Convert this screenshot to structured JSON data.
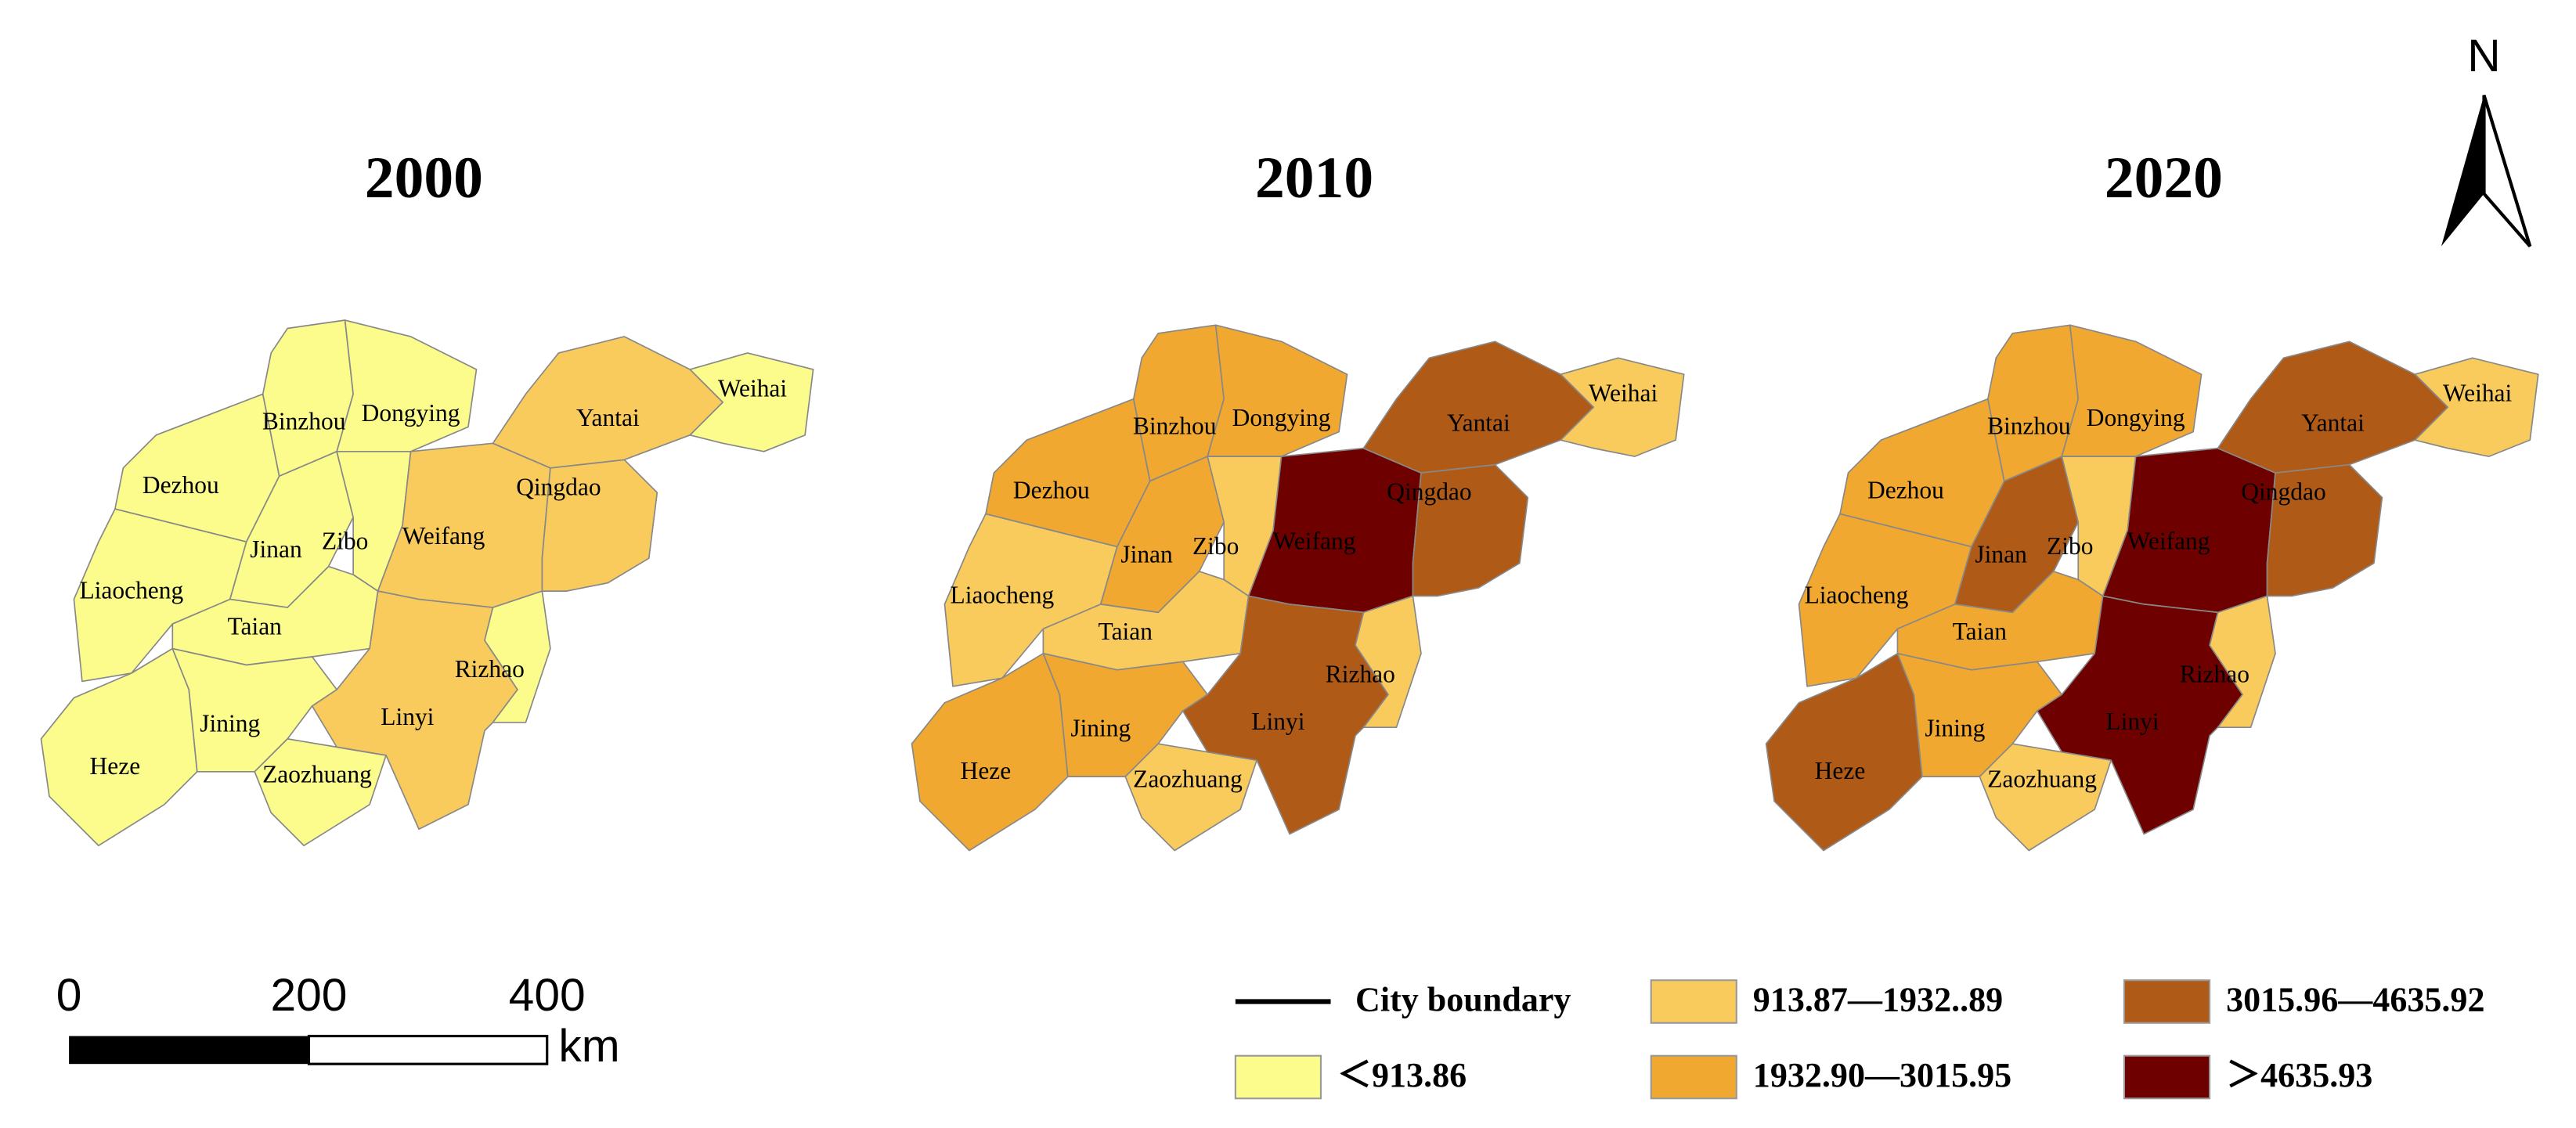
{
  "north": "N",
  "maps": [
    {
      "year": "2000",
      "cities": [
        {
          "name": "Dezhou",
          "color": "#fbfc8c"
        },
        {
          "name": "Liaocheng",
          "color": "#fbfc8c"
        },
        {
          "name": "Binzhou",
          "color": "#fbfc8c"
        },
        {
          "name": "Dongying",
          "color": "#fbfc8c"
        },
        {
          "name": "Jinan",
          "color": "#fbfc8c"
        },
        {
          "name": "Zibo",
          "color": "#fbfc8c"
        },
        {
          "name": "Taian",
          "color": "#fbfc8c"
        },
        {
          "name": "Heze",
          "color": "#fbfc8c"
        },
        {
          "name": "Jining",
          "color": "#fbfc8c"
        },
        {
          "name": "Zaozhuang",
          "color": "#fbfc8c"
        },
        {
          "name": "Weifang",
          "color": "#f8cb5c"
        },
        {
          "name": "Linyi",
          "color": "#f8cb5c"
        },
        {
          "name": "Rizhao",
          "color": "#fbfc8c"
        },
        {
          "name": "Qingdao",
          "color": "#f8cb5c"
        },
        {
          "name": "Yantai",
          "color": "#f8cb5c"
        },
        {
          "name": "Weihai",
          "color": "#fbfc8c"
        }
      ]
    },
    {
      "year": "2010",
      "cities": [
        {
          "name": "Dezhou",
          "color": "#f0a830"
        },
        {
          "name": "Liaocheng",
          "color": "#f8cb5c"
        },
        {
          "name": "Binzhou",
          "color": "#f0a830"
        },
        {
          "name": "Dongying",
          "color": "#f0a830"
        },
        {
          "name": "Jinan",
          "color": "#f0a830"
        },
        {
          "name": "Zibo",
          "color": "#f8cb5c"
        },
        {
          "name": "Taian",
          "color": "#f8cb5c"
        },
        {
          "name": "Heze",
          "color": "#f0a830"
        },
        {
          "name": "Jining",
          "color": "#f0a830"
        },
        {
          "name": "Zaozhuang",
          "color": "#f8cb5c"
        },
        {
          "name": "Weifang",
          "color": "#6e0000"
        },
        {
          "name": "Linyi",
          "color": "#b05a17"
        },
        {
          "name": "Rizhao",
          "color": "#f8cb5c"
        },
        {
          "name": "Qingdao",
          "color": "#b05a17"
        },
        {
          "name": "Yantai",
          "color": "#b05a17"
        },
        {
          "name": "Weihai",
          "color": "#f8cb5c"
        }
      ]
    },
    {
      "year": "2020",
      "cities": [
        {
          "name": "Dezhou",
          "color": "#f0a830"
        },
        {
          "name": "Liaocheng",
          "color": "#f0a830"
        },
        {
          "name": "Binzhou",
          "color": "#f0a830"
        },
        {
          "name": "Dongying",
          "color": "#f0a830"
        },
        {
          "name": "Jinan",
          "color": "#b05a17"
        },
        {
          "name": "Zibo",
          "color": "#f8cb5c"
        },
        {
          "name": "Taian",
          "color": "#f0a830"
        },
        {
          "name": "Heze",
          "color": "#b05a17"
        },
        {
          "name": "Jining",
          "color": "#f0a830"
        },
        {
          "name": "Zaozhuang",
          "color": "#f8cb5c"
        },
        {
          "name": "Weifang",
          "color": "#6e0000"
        },
        {
          "name": "Linyi",
          "color": "#6e0000"
        },
        {
          "name": "Rizhao",
          "color": "#f8cb5c"
        },
        {
          "name": "Qingdao",
          "color": "#b05a17"
        },
        {
          "name": "Yantai",
          "color": "#b05a17"
        },
        {
          "name": "Weihai",
          "color": "#f8cb5c"
        }
      ]
    }
  ],
  "legend": {
    "boundary": "City boundary",
    "classes": [
      {
        "label": "913.87—1932..89",
        "color": "#f8cb5c"
      },
      {
        "label": "3015.96—4635.92",
        "color": "#b05a17"
      },
      {
        "label": "＜913.86",
        "color": "#fbfc8c"
      },
      {
        "label": "1932.90—3015.95",
        "color": "#f0a830"
      },
      {
        "label": "＞4635.93",
        "color": "#6e0000"
      }
    ]
  },
  "scale_bar": {
    "ticks": [
      "0",
      "200",
      "400"
    ],
    "unit": "km"
  }
}
